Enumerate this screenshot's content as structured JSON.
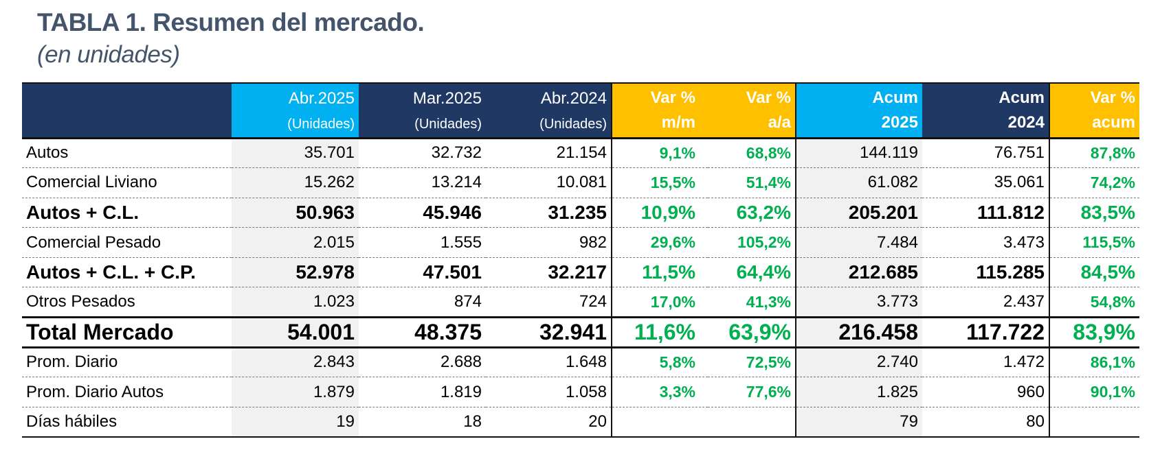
{
  "title": "TABLA 1. Resumen del mercado.",
  "subtitle": "(en unidades)",
  "table": {
    "headers": [
      {
        "line1": "",
        "line2": ""
      },
      {
        "line1": "Abr.2025",
        "line2": "(Unidades)"
      },
      {
        "line1": "Mar.2025",
        "line2": "(Unidades)"
      },
      {
        "line1": "Abr.2024",
        "line2": "(Unidades)"
      },
      {
        "line1": "Var %",
        "line2": "m/m"
      },
      {
        "line1": "Var %",
        "line2": "a/a"
      },
      {
        "line1": "Acum",
        "line2": "2025"
      },
      {
        "line1": "Acum",
        "line2": "2024"
      },
      {
        "line1": "Var %",
        "line2": "acum"
      }
    ],
    "rows": [
      {
        "label": "Autos",
        "abr2025": "35.701",
        "mar2025": "32.732",
        "abr2024": "21.154",
        "var_mm": "9,1%",
        "var_aa": "68,8%",
        "acum2025": "144.119",
        "acum2024": "76.751",
        "var_acum": "87,8%"
      },
      {
        "label": "Comercial Liviano",
        "abr2025": "15.262",
        "mar2025": "13.214",
        "abr2024": "10.081",
        "var_mm": "15,5%",
        "var_aa": "51,4%",
        "acum2025": "61.082",
        "acum2024": "35.061",
        "var_acum": "74,2%"
      },
      {
        "label": "Autos + C.L.",
        "abr2025": "50.963",
        "mar2025": "45.946",
        "abr2024": "31.235",
        "var_mm": "10,9%",
        "var_aa": "63,2%",
        "acum2025": "205.201",
        "acum2024": "111.812",
        "var_acum": "83,5%"
      },
      {
        "label": "Comercial Pesado",
        "abr2025": "2.015",
        "mar2025": "1.555",
        "abr2024": "982",
        "var_mm": "29,6%",
        "var_aa": "105,2%",
        "acum2025": "7.484",
        "acum2024": "3.473",
        "var_acum": "115,5%"
      },
      {
        "label": "Autos + C.L. + C.P.",
        "abr2025": "52.978",
        "mar2025": "47.501",
        "abr2024": "32.217",
        "var_mm": "11,5%",
        "var_aa": "64,4%",
        "acum2025": "212.685",
        "acum2024": "115.285",
        "var_acum": "84,5%"
      },
      {
        "label": "Otros Pesados",
        "abr2025": "1.023",
        "mar2025": "874",
        "abr2024": "724",
        "var_mm": "17,0%",
        "var_aa": "41,3%",
        "acum2025": "3.773",
        "acum2024": "2.437",
        "var_acum": "54,8%"
      },
      {
        "label": "Total Mercado",
        "abr2025": "54.001",
        "mar2025": "48.375",
        "abr2024": "32.941",
        "var_mm": "11,6%",
        "var_aa": "63,9%",
        "acum2025": "216.458",
        "acum2024": "117.722",
        "var_acum": "83,9%"
      },
      {
        "label": "Prom. Diario",
        "abr2025": "2.843",
        "mar2025": "2.688",
        "abr2024": "1.648",
        "var_mm": "5,8%",
        "var_aa": "72,5%",
        "acum2025": "2.740",
        "acum2024": "1.472",
        "var_acum": "86,1%"
      },
      {
        "label": "Prom. Diario Autos",
        "abr2025": "1.879",
        "mar2025": "1.819",
        "abr2024": "1.058",
        "var_mm": "3,3%",
        "var_aa": "77,6%",
        "acum2025": "1.825",
        "acum2024": "960",
        "var_acum": "90,1%"
      },
      {
        "label": "Días hábiles",
        "abr2025": "19",
        "mar2025": "18",
        "abr2024": "20",
        "var_mm": "",
        "var_aa": "",
        "acum2025": "79",
        "acum2024": "80",
        "var_acum": ""
      }
    ]
  },
  "colors": {
    "title": "#44546a",
    "header_navy": "#203864",
    "header_cyan": "#00b0f0",
    "header_gold": "#ffc000",
    "positive_pct": "#00b050",
    "shade": "#f1f1f1"
  }
}
